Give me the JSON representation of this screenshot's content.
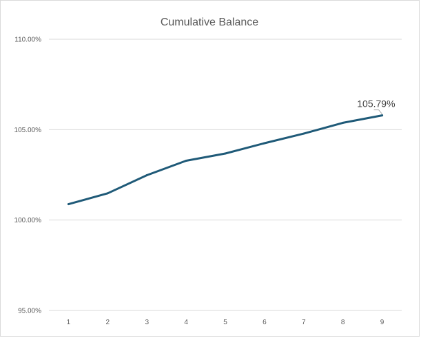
{
  "chart_data": {
    "type": "line",
    "title": "Cumulative Balance",
    "xlabel": "",
    "ylabel": "",
    "categories": [
      "1",
      "2",
      "3",
      "4",
      "5",
      "6",
      "7",
      "8",
      "9"
    ],
    "series": [
      {
        "values": [
          100.88,
          101.48,
          102.48,
          103.28,
          103.68,
          104.25,
          104.78,
          105.38,
          105.79
        ],
        "color": "#1f5a78"
      }
    ],
    "ylim": [
      95,
      110
    ],
    "yticks": [
      95,
      100,
      105,
      110
    ],
    "ytick_labels": [
      "95.00%",
      "100.00%",
      "105.00%",
      "110.00%"
    ],
    "grid": true,
    "legend": "none",
    "data_labels": [
      {
        "index": 8,
        "text": "105.79%"
      }
    ]
  }
}
